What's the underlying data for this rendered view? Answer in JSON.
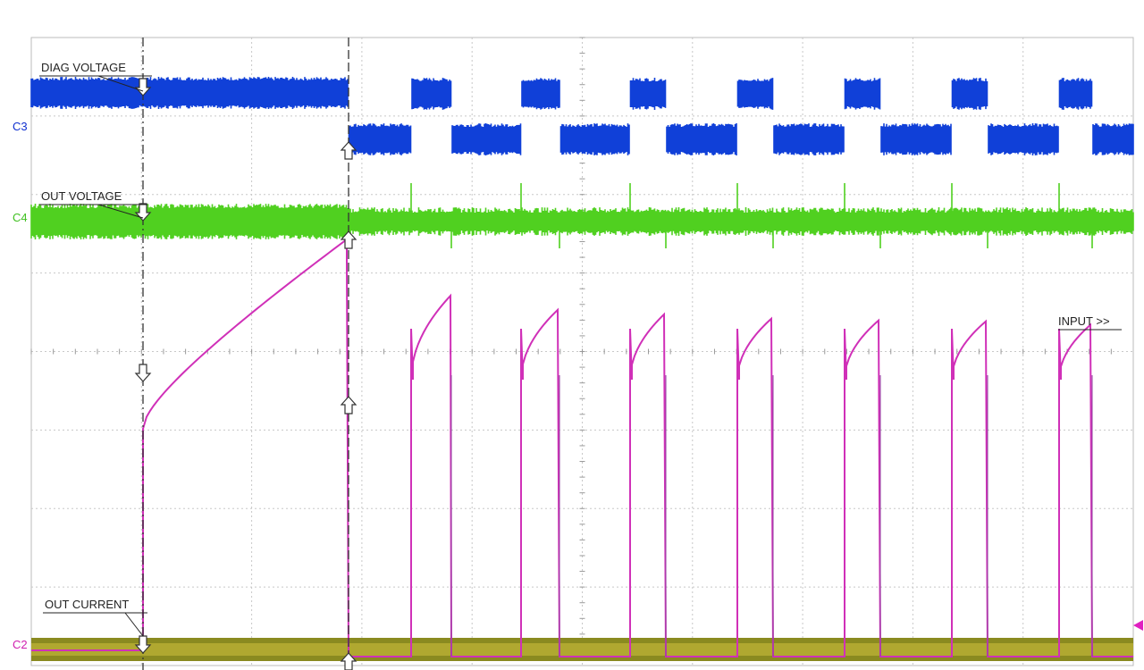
{
  "traces": {
    "diag_voltage": "DIAG VOLTAGE",
    "out_voltage": "OUT VOLTAGE",
    "out_current": "OUT CURRENT",
    "input": "INPUT >>"
  },
  "channels": {
    "c3": "C3",
    "c4": "C4",
    "c2": "C2"
  }
}
